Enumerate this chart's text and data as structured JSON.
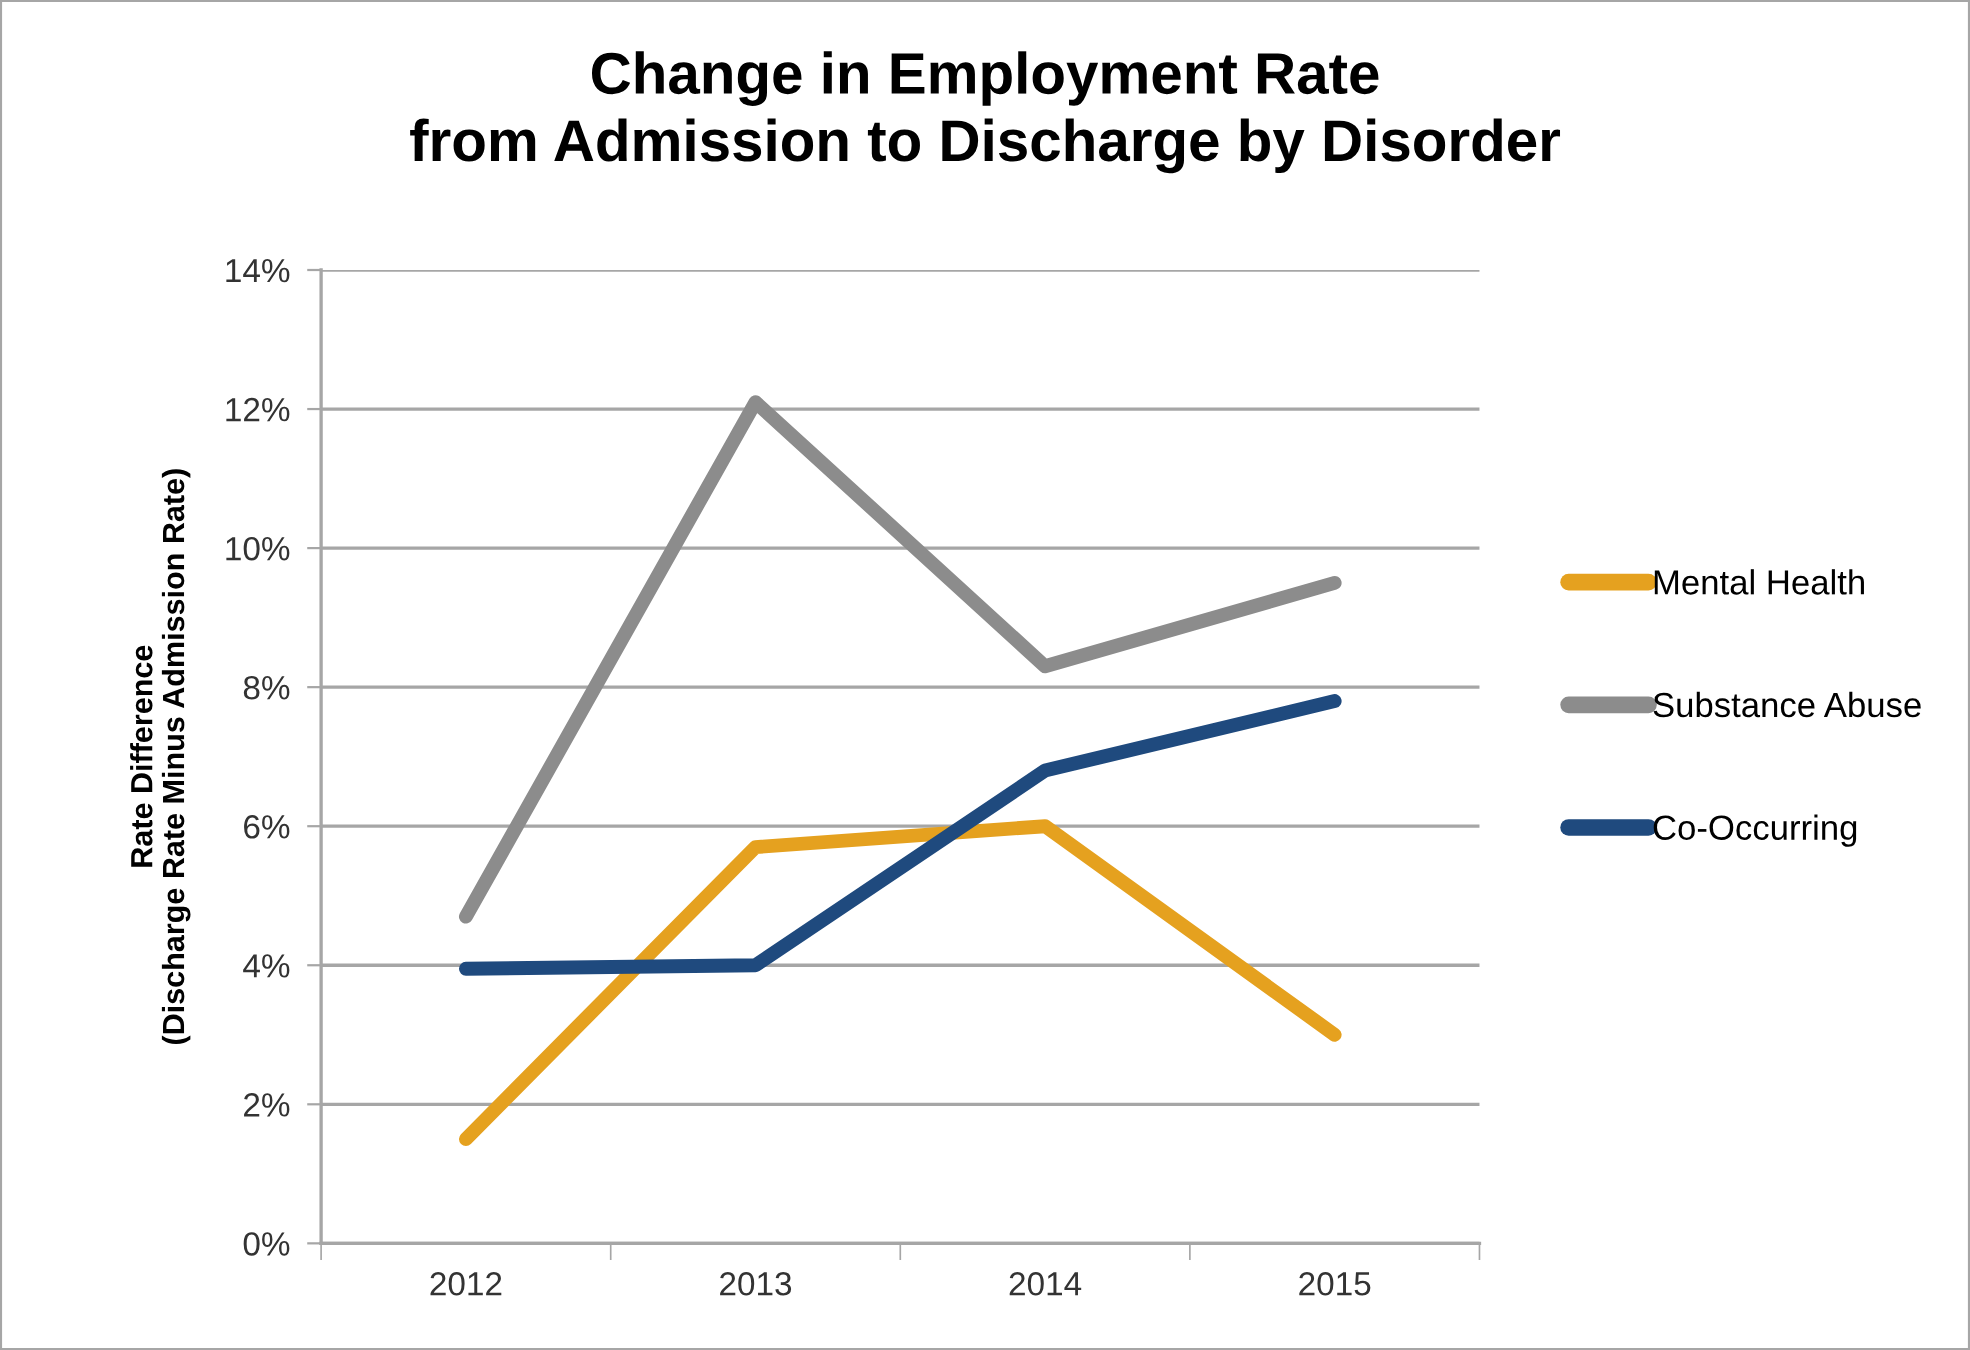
{
  "chart_data": {
    "type": "line",
    "title": "Change in Employment Rate\nfrom Admission to Discharge by Disorder",
    "ylabel": "Rate Difference\n(Discharge Rate Minus Admission Rate)",
    "categories": [
      "2012",
      "2013",
      "2014",
      "2015"
    ],
    "series": [
      {
        "name": "Mental Health",
        "color": "#e5a11f",
        "values": [
          1.5,
          5.7,
          6.0,
          3.0
        ]
      },
      {
        "name": "Substance Abuse",
        "color": "#8c8c8c",
        "values": [
          4.7,
          12.1,
          8.3,
          9.5
        ]
      },
      {
        "name": "Co-Occurring",
        "color": "#1f4a7e",
        "values": [
          3.95,
          4.0,
          6.8,
          7.8
        ]
      }
    ],
    "ylim": [
      0,
      14
    ],
    "yticks": [
      {
        "value": 0,
        "label": "0%"
      },
      {
        "value": 2,
        "label": "2%"
      },
      {
        "value": 4,
        "label": "4%"
      },
      {
        "value": 6,
        "label": "6%"
      },
      {
        "value": 8,
        "label": "8%"
      },
      {
        "value": 10,
        "label": "10%"
      },
      {
        "value": 12,
        "label": "12%"
      },
      {
        "value": 14,
        "label": "14%"
      }
    ],
    "grid": "y",
    "legend": "right",
    "marker": "none",
    "line_style": "solid"
  }
}
